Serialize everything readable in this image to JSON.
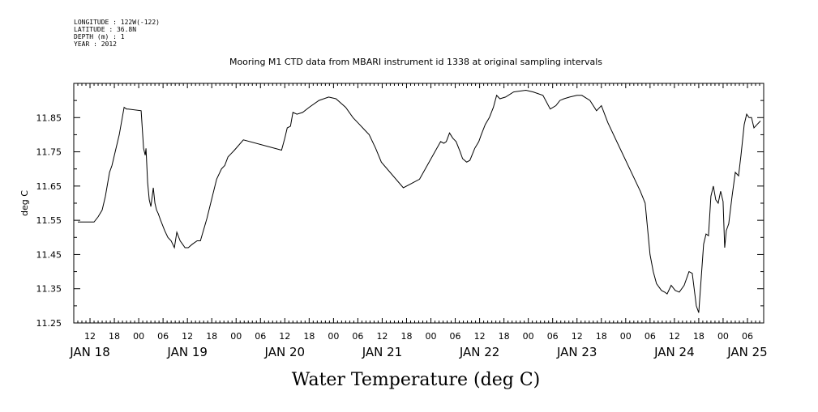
{
  "header": {
    "longitude": "LONGITUDE : 122W(-122)",
    "latitude": "LATITUDE : 36.8N",
    "depth": "DEPTH (m) : 1",
    "year": "YEAR : 2012"
  },
  "chart_data": {
    "type": "line",
    "title": "Mooring M1 CTD data from MBARI instrument id 1338 at original sampling intervals",
    "xlabel": "Water Temperature (deg C)",
    "ylabel": "deg C",
    "grid": false,
    "xlim": [
      "JAN 18 08:00",
      "JAN 25 10:00"
    ],
    "ylim": [
      11.25,
      11.95
    ],
    "y_ticks": [
      "11.25",
      "11.35",
      "11.45",
      "11.55",
      "11.65",
      "11.75",
      "11.85"
    ],
    "x_hour_ticks": [
      {
        "time": "JAN 18 12:00",
        "label": "12"
      },
      {
        "time": "JAN 18 18:00",
        "label": "18"
      },
      {
        "time": "JAN 19 00:00",
        "label": "00"
      },
      {
        "time": "JAN 19 06:00",
        "label": "06"
      },
      {
        "time": "JAN 19 12:00",
        "label": "12"
      },
      {
        "time": "JAN 19 18:00",
        "label": "18"
      },
      {
        "time": "JAN 20 00:00",
        "label": "00"
      },
      {
        "time": "JAN 20 06:00",
        "label": "06"
      },
      {
        "time": "JAN 20 12:00",
        "label": "12"
      },
      {
        "time": "JAN 20 18:00",
        "label": "18"
      },
      {
        "time": "JAN 21 00:00",
        "label": "00"
      },
      {
        "time": "JAN 21 06:00",
        "label": "06"
      },
      {
        "time": "JAN 21 12:00",
        "label": "12"
      },
      {
        "time": "JAN 21 18:00",
        "label": "18"
      },
      {
        "time": "JAN 22 00:00",
        "label": "00"
      },
      {
        "time": "JAN 22 06:00",
        "label": "06"
      },
      {
        "time": "JAN 22 12:00",
        "label": "12"
      },
      {
        "time": "JAN 22 18:00",
        "label": "18"
      },
      {
        "time": "JAN 23 00:00",
        "label": "00"
      },
      {
        "time": "JAN 23 06:00",
        "label": "06"
      },
      {
        "time": "JAN 23 12:00",
        "label": "12"
      },
      {
        "time": "JAN 23 18:00",
        "label": "18"
      },
      {
        "time": "JAN 24 00:00",
        "label": "00"
      },
      {
        "time": "JAN 24 06:00",
        "label": "06"
      },
      {
        "time": "JAN 24 12:00",
        "label": "12"
      },
      {
        "time": "JAN 24 18:00",
        "label": "18"
      },
      {
        "time": "JAN 25 00:00",
        "label": "00"
      },
      {
        "time": "JAN 25 06:00",
        "label": "06"
      }
    ],
    "x_day_labels": [
      {
        "time": "JAN 18 12:00",
        "label": "JAN 18"
      },
      {
        "time": "JAN 19 12:00",
        "label": "JAN 19"
      },
      {
        "time": "JAN 20 12:00",
        "label": "JAN 20"
      },
      {
        "time": "JAN 21 12:00",
        "label": "JAN 21"
      },
      {
        "time": "JAN 22 12:00",
        "label": "JAN 22"
      },
      {
        "time": "JAN 23 12:00",
        "label": "JAN 23"
      },
      {
        "time": "JAN 24 12:00",
        "label": "JAN 24"
      },
      {
        "time": "JAN 25 06:00",
        "label": "JAN 25"
      }
    ],
    "series": [
      {
        "color": "#000000",
        "x": [
          "JAN 18 09:00",
          "JAN 18 13:00",
          "JAN 18 14:00",
          "JAN 18 15:00",
          "JAN 18 15:48",
          "JAN 18 16:48",
          "JAN 18 17:24",
          "JAN 18 18:00",
          "JAN 18 19:12",
          "JAN 18 20:24",
          "JAN 18 21:00",
          "JAN 18 21:24",
          "JAN 19 00:36",
          "JAN 19 01:12",
          "JAN 19 01:36",
          "JAN 19 01:48",
          "JAN 19 02:12",
          "JAN 19 02:36",
          "JAN 19 03:00",
          "JAN 19 03:36",
          "JAN 19 04:00",
          "JAN 19 04:24",
          "JAN 19 04:48",
          "JAN 19 05:24",
          "JAN 19 06:24",
          "JAN 19 07:12",
          "JAN 19 08:00",
          "JAN 19 08:48",
          "JAN 19 09:24",
          "JAN 19 10:12",
          "JAN 19 10:48",
          "JAN 19 11:24",
          "JAN 19 12:12",
          "JAN 19 13:12",
          "JAN 19 14:24",
          "JAN 19 15:12",
          "JAN 19 16:48",
          "JAN 19 19:12",
          "JAN 19 20:24",
          "JAN 19 21:12",
          "JAN 19 22:00",
          "JAN 19 22:48",
          "JAN 19 23:36",
          "JAN 20 01:48",
          "JAN 20 11:12",
          "JAN 20 12:00",
          "JAN 20 12:36",
          "JAN 20 13:24",
          "JAN 20 14:00",
          "JAN 20 15:00",
          "JAN 20 16:24",
          "JAN 20 18:00",
          "JAN 20 20:24",
          "JAN 20 22:48",
          "JAN 21 00:36",
          "JAN 21 03:00",
          "JAN 21 04:48",
          "JAN 21 06:24",
          "JAN 21 07:36",
          "JAN 21 08:48",
          "JAN 21 10:24",
          "JAN 21 11:48",
          "JAN 21 17:12",
          "JAN 21 21:12",
          "JAN 22 02:24",
          "JAN 22 03:12",
          "JAN 22 03:48",
          "JAN 22 04:36",
          "JAN 22 05:24",
          "JAN 22 06:12",
          "JAN 22 07:12",
          "JAN 22 07:48",
          "JAN 22 08:48",
          "JAN 22 09:36",
          "JAN 22 10:48",
          "JAN 22 11:48",
          "JAN 22 12:24",
          "JAN 22 13:24",
          "JAN 22 14:24",
          "JAN 22 15:24",
          "JAN 22 16:12",
          "JAN 22 17:00",
          "JAN 22 18:24",
          "JAN 22 20:24",
          "JAN 22 23:24",
          "JAN 23 01:12",
          "JAN 23 03:36",
          "JAN 23 05:24",
          "JAN 23 06:48",
          "JAN 23 07:48",
          "JAN 23 08:48",
          "JAN 23 10:12",
          "JAN 23 12:00",
          "JAN 23 13:12",
          "JAN 23 15:12",
          "JAN 23 16:48",
          "JAN 23 18:00",
          "JAN 23 18:48",
          "JAN 23 19:36",
          "JAN 24 03:36",
          "JAN 24 04:48",
          "JAN 24 06:00",
          "JAN 24 06:48",
          "JAN 24 07:36",
          "JAN 24 08:48",
          "JAN 24 09:36",
          "JAN 24 10:12",
          "JAN 24 11:12",
          "JAN 24 12:12",
          "JAN 24 13:12",
          "JAN 24 14:24",
          "JAN 24 15:36",
          "JAN 24 16:24",
          "JAN 24 17:24",
          "JAN 24 18:00",
          "JAN 24 18:36",
          "JAN 24 19:12",
          "JAN 24 19:48",
          "JAN 24 20:24",
          "JAN 24 21:00",
          "JAN 24 21:36",
          "JAN 24 22:12",
          "JAN 24 22:48",
          "JAN 24 23:24",
          "JAN 25 00:00",
          "JAN 25 00:24",
          "JAN 25 00:48",
          "JAN 25 01:24",
          "JAN 25 02:12",
          "JAN 25 03:00",
          "JAN 25 03:48",
          "JAN 25 04:24",
          "JAN 25 05:12",
          "JAN 25 05:48",
          "JAN 25 06:24",
          "JAN 25 07:00",
          "JAN 25 07:36",
          "JAN 25 08:24",
          "JAN 25 09:12"
        ],
        "y": [
          11.545,
          11.545,
          11.56,
          11.58,
          11.62,
          11.69,
          11.71,
          11.74,
          11.8,
          11.88,
          11.875,
          11.875,
          11.87,
          11.76,
          11.74,
          11.76,
          11.66,
          11.61,
          11.59,
          11.645,
          11.6,
          11.58,
          11.57,
          11.55,
          11.52,
          11.5,
          11.49,
          11.47,
          11.515,
          11.49,
          11.48,
          11.47,
          11.47,
          11.48,
          11.49,
          11.49,
          11.555,
          11.67,
          11.7,
          11.71,
          11.735,
          11.745,
          11.755,
          11.785,
          11.755,
          11.79,
          11.82,
          11.825,
          11.865,
          11.86,
          11.865,
          11.88,
          11.9,
          11.91,
          11.905,
          11.88,
          11.85,
          11.83,
          11.815,
          11.8,
          11.76,
          11.72,
          11.645,
          11.67,
          11.78,
          11.775,
          11.78,
          11.805,
          11.79,
          11.78,
          11.75,
          11.73,
          11.72,
          11.725,
          11.76,
          11.78,
          11.8,
          11.83,
          11.85,
          11.88,
          11.915,
          11.905,
          11.91,
          11.925,
          11.93,
          11.925,
          11.915,
          11.875,
          11.885,
          11.9,
          11.905,
          11.91,
          11.915,
          11.915,
          11.9,
          11.87,
          11.885,
          11.86,
          11.835,
          11.635,
          11.6,
          11.45,
          11.4,
          11.365,
          11.345,
          11.34,
          11.335,
          11.36,
          11.345,
          11.34,
          11.36,
          11.4,
          11.395,
          11.3,
          11.28,
          11.38,
          11.48,
          11.51,
          11.505,
          11.62,
          11.65,
          11.61,
          11.6,
          11.635,
          11.605,
          11.47,
          11.52,
          11.54,
          11.62,
          11.69,
          11.68,
          11.74,
          11.83,
          11.86,
          11.85,
          11.85,
          11.82,
          11.83,
          11.84
        ]
      }
    ]
  }
}
